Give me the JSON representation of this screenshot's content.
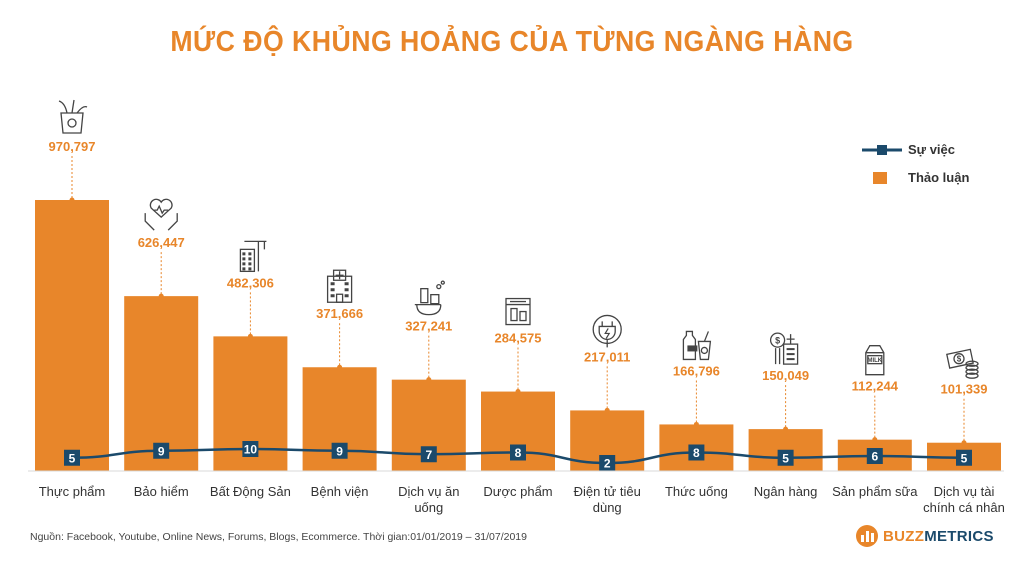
{
  "title": "MỨC ĐỘ KHỦNG HOẢNG CỦA TỪNG NGÀNG HÀNG",
  "legend": {
    "line_label": "Sự việc",
    "bar_label": "Thảo luận"
  },
  "source": "Nguồn: Facebook, Youtube, Online News, Forums, Blogs, Ecommerce. Thời gian:01/01/2019 – 31/07/2019",
  "logo": {
    "part1": "BUZZ",
    "part2": "METRICS"
  },
  "colors": {
    "bar": "#E8862A",
    "line": "#1B4A6B",
    "title": "#E8862A"
  },
  "chart_data": {
    "type": "bar",
    "categories": [
      "Thực phẩm",
      "Bảo hiểm",
      "Bất Động Sản",
      "Bệnh viện",
      "Dịch vụ ăn uống",
      "Dược phẩm",
      "Điện tử tiêu dùng",
      "Thức uống",
      "Ngân hàng",
      "Sản phẩm sữa",
      "Dịch vụ tài chính cá nhân"
    ],
    "category_lines": [
      [
        "Thực phẩm"
      ],
      [
        "Bảo hiểm"
      ],
      [
        "Bất Động Sản"
      ],
      [
        "Bệnh viện"
      ],
      [
        "Dịch vụ ăn",
        "uống"
      ],
      [
        "Dược phẩm"
      ],
      [
        "Điện tử tiêu",
        "dùng"
      ],
      [
        "Thức uống"
      ],
      [
        "Ngân hàng"
      ],
      [
        "Sản phẩm sữa"
      ],
      [
        "Dịch vụ tài",
        "chính cá nhân"
      ]
    ],
    "icons": [
      "grocery-bag-icon",
      "insurance-hands-heart-icon",
      "construction-building-icon",
      "hospital-icon",
      "food-service-icon",
      "pharmacy-icon",
      "electric-plug-icon",
      "drinks-icon",
      "bank-city-icon",
      "milk-carton-icon",
      "money-coins-icon"
    ],
    "series": [
      {
        "name": "Thảo luận",
        "type": "bar",
        "values": [
          970797,
          626447,
          482306,
          371666,
          327241,
          284575,
          217011,
          166796,
          150049,
          112244,
          101339
        ],
        "labels": [
          "970,797",
          "626,447",
          "482,306",
          "371,666",
          "327,241",
          "284,575",
          "217,011",
          "166,796",
          "150,049",
          "112,244",
          "101,339"
        ]
      },
      {
        "name": "Sự việc",
        "type": "line",
        "values": [
          5,
          9,
          10,
          9,
          7,
          8,
          2,
          8,
          5,
          6,
          5
        ]
      }
    ],
    "legend_position": "top-right",
    "grid": false
  }
}
